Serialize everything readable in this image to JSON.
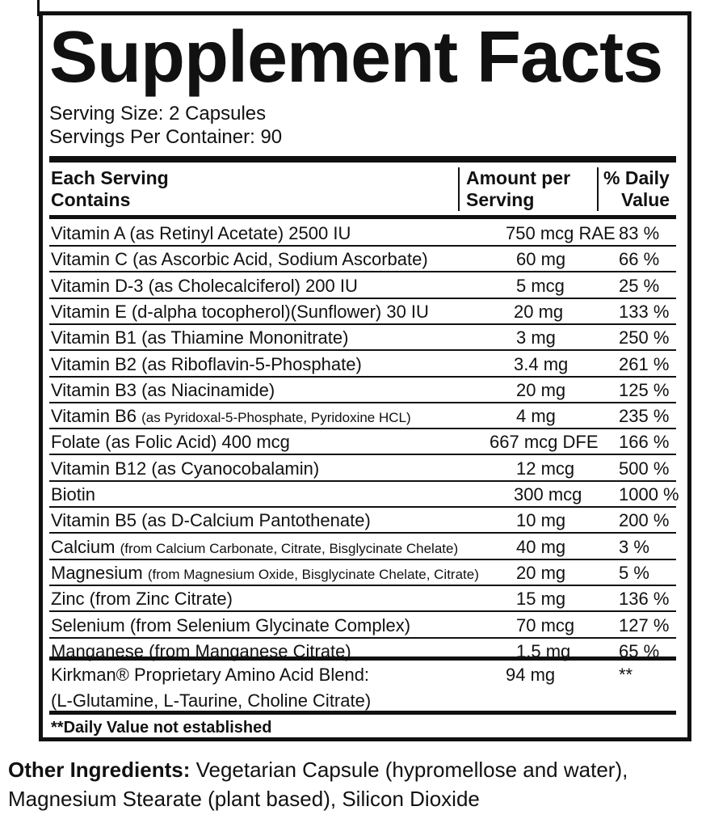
{
  "title": "Supplement Facts",
  "serving_size": "Serving Size: 2 Capsules",
  "servings_per_container": "Servings Per Container: 90",
  "headers": {
    "col1_line1": "Each Serving",
    "col1_line2": "Contains",
    "col2_line1": "Amount per",
    "col2_line2": "Serving",
    "col3_line1": "% Daily",
    "col3_line2": "Value"
  },
  "rows": [
    {
      "name": "Vitamin A (as Retinyl Acetate) 2500 IU",
      "detail": "",
      "amount": "750 mcg RAE",
      "dv": "83 %"
    },
    {
      "name": "Vitamin C (as Ascorbic Acid, Sodium Ascorbate)",
      "detail": "",
      "amount": "60 mg",
      "dv": "66 %"
    },
    {
      "name": "Vitamin D-3 (as Cholecalciferol) 200 IU",
      "detail": "",
      "amount": "5 mcg",
      "dv": "25 %"
    },
    {
      "name": "Vitamin E (d-alpha tocopherol)(Sunflower) 30 IU",
      "detail": "",
      "amount": "20 mg",
      "dv": "133 %"
    },
    {
      "name": "Vitamin B1 (as Thiamine Mononitrate)",
      "detail": "",
      "amount": "3 mg",
      "dv": "250 %"
    },
    {
      "name": "Vitamin B2 (as Riboflavin-5-Phosphate)",
      "detail": "",
      "amount": "3.4 mg",
      "dv": "261 %"
    },
    {
      "name": "Vitamin B3 (as Niacinamide)",
      "detail": "",
      "amount": "20 mg",
      "dv": "125 %"
    },
    {
      "name": "Vitamin B6 ",
      "detail": "(as Pyridoxal-5-Phosphate, Pyridoxine HCL)",
      "amount": "4 mg",
      "dv": "235 %"
    },
    {
      "name": "Folate (as Folic Acid) 400 mcg",
      "detail": "",
      "amount": "667 mcg DFE",
      "dv": "166 %"
    },
    {
      "name": "Vitamin B12 (as Cyanocobalamin)",
      "detail": "",
      "amount": "12 mcg",
      "dv": "500 %"
    },
    {
      "name": "Biotin",
      "detail": "",
      "amount": "300 mcg",
      "dv": "1000 %"
    },
    {
      "name": "Vitamin B5 (as D-Calcium Pantothenate)",
      "detail": "",
      "amount": "10 mg",
      "dv": "200 %"
    },
    {
      "name": "Calcium ",
      "detail": "(from Calcium Carbonate, Citrate, Bisglycinate Chelate)",
      "amount": "40 mg",
      "dv": "3 %"
    },
    {
      "name": "Magnesium ",
      "detail": "(from Magnesium Oxide, Bisglycinate Chelate, Citrate)",
      "amount": "20 mg",
      "dv": "5 %"
    },
    {
      "name": "Zinc (from Zinc Citrate)",
      "detail": "",
      "amount": "15 mg",
      "dv": "136 %"
    },
    {
      "name": "Selenium (from Selenium Glycinate Complex)",
      "detail": "",
      "amount": "70 mcg",
      "dv": "127 %"
    },
    {
      "name": "Manganese (from Manganese Citrate)",
      "detail": "",
      "amount": "1.5 mg",
      "dv": "65 %"
    }
  ],
  "blend": {
    "line1": "Kirkman® Proprietary Amino Acid Blend:",
    "line2": "(L-Glutamine, L-Taurine, Choline Citrate)",
    "amount": "94 mg",
    "dv": "**"
  },
  "footnote": "**Daily Value not established",
  "other_ingredients": {
    "label": "Other Ingredients:",
    "text": " Vegetarian Capsule (hypromellose and water), Magnesium Stearate (plant based), Silicon Dioxide"
  }
}
